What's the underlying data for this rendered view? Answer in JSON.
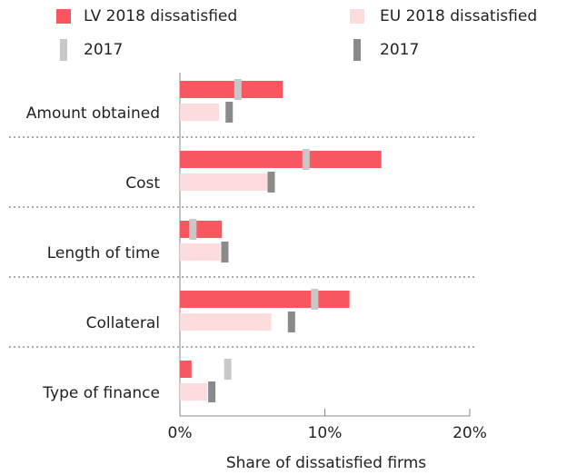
{
  "chart_data": {
    "type": "bar",
    "orientation": "horizontal",
    "x_label": "Share of dissatisfied firms",
    "categories": [
      "Amount obtained",
      "Cost",
      "Length of time",
      "Collateral",
      "Type of finance"
    ],
    "series": [
      {
        "name": "LV 2018 dissatisfied",
        "color": "#f9575f",
        "mark": "bar",
        "values": [
          7.1,
          13.9,
          2.9,
          11.7,
          0.8
        ]
      },
      {
        "name": "EU 2018 dissatisfied",
        "color": "#fcdcdc",
        "mark": "bar",
        "values": [
          2.7,
          6.1,
          2.8,
          6.3,
          1.9
        ]
      },
      {
        "name": "2017",
        "color": "#c8c8c8",
        "mark": "marker",
        "values": [
          4.0,
          8.7,
          0.9,
          9.3,
          3.3
        ]
      },
      {
        "name": "2017",
        "color": "#8a8a8a",
        "mark": "marker",
        "values": [
          3.4,
          6.3,
          3.1,
          7.7,
          2.2
        ]
      }
    ],
    "xlim": [
      0,
      20
    ],
    "xticks": [
      {
        "value": 0,
        "label": "0%"
      },
      {
        "value": 10,
        "label": "10%"
      },
      {
        "value": 20,
        "label": "20%"
      }
    ]
  }
}
